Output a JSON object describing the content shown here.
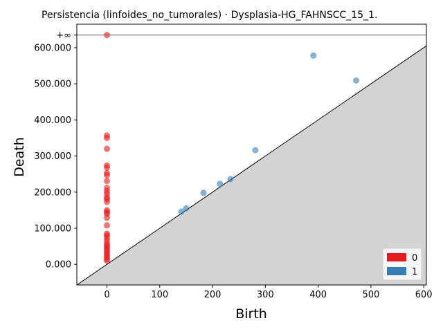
{
  "chart_data": {
    "type": "scatter",
    "title": "Persistencia (linfoides_no_tumorales) · Dysplasia-HG_FAHNSCC_15_1.",
    "xlabel": "Birth",
    "ylabel": "Death",
    "xlim": [
      -57,
      605
    ],
    "ylim": [
      -57000,
      665000
    ],
    "infinity_label": "+∞",
    "infinity_value": 635000,
    "x_ticks": [
      0,
      100,
      200,
      300,
      400,
      500,
      600
    ],
    "x_tick_labels": [
      "0",
      "100",
      "200",
      "300",
      "400",
      "500",
      "600"
    ],
    "y_ticks": [
      0,
      100000,
      200000,
      300000,
      400000,
      500000,
      600000
    ],
    "y_tick_labels": [
      "0.000",
      "100.000",
      "200.000",
      "300.000",
      "400.000",
      "500.000",
      "600.000"
    ],
    "diagonal": true,
    "diagonal_fill_color": "#d3d3d3",
    "legend_position": "bottom-right",
    "series": [
      {
        "name": "0",
        "color": "#e41a1c",
        "points": [
          [
            0,
            635000
          ],
          [
            0,
            357000
          ],
          [
            0,
            350000
          ],
          [
            0,
            320000
          ],
          [
            0,
            274000
          ],
          [
            0,
            268000
          ],
          [
            0,
            253000
          ],
          [
            0,
            247000
          ],
          [
            0,
            231000
          ],
          [
            0,
            212000
          ],
          [
            0,
            203000
          ],
          [
            0,
            196000
          ],
          [
            0,
            186000
          ],
          [
            0,
            181000
          ],
          [
            0,
            173000
          ],
          [
            0,
            150000
          ],
          [
            0,
            145000
          ],
          [
            0,
            140000
          ],
          [
            0,
            129000
          ],
          [
            0,
            108000
          ],
          [
            0,
            85000
          ],
          [
            0,
            80000
          ],
          [
            0,
            73000
          ],
          [
            0,
            65000
          ],
          [
            0,
            57000
          ],
          [
            0,
            52000
          ],
          [
            0,
            47000
          ],
          [
            0,
            42000
          ],
          [
            0,
            36000
          ],
          [
            0,
            31000
          ],
          [
            0,
            25000
          ],
          [
            0,
            20000
          ],
          [
            0,
            15000
          ],
          [
            0,
            10000
          ]
        ]
      },
      {
        "name": "1",
        "color": "#377eb8",
        "points": [
          [
            141,
            146000
          ],
          [
            150,
            155000
          ],
          [
            183,
            198000
          ],
          [
            214,
            223000
          ],
          [
            234,
            236000
          ],
          [
            281,
            316000
          ],
          [
            391,
            578000
          ],
          [
            472,
            509000
          ]
        ]
      }
    ]
  }
}
